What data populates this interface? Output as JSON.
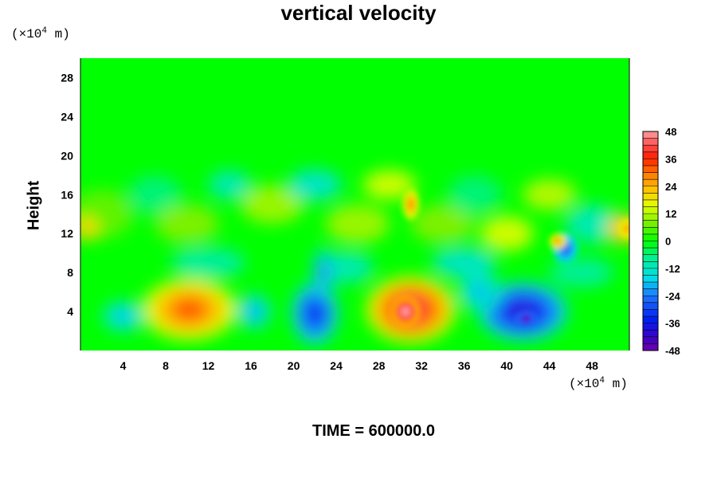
{
  "chart_data": {
    "type": "heatmap",
    "title": "vertical velocity",
    "ylabel": "Height",
    "xlabel": "",
    "x_unit": "(×10⁴ m)",
    "y_unit": "(×10⁴ m)",
    "footer": "TIME = 600000.0",
    "xlim": [
      0,
      51.5
    ],
    "ylim": [
      0,
      30
    ],
    "x_ticks": [
      4,
      8,
      12,
      16,
      20,
      24,
      28,
      32,
      36,
      40,
      44,
      48
    ],
    "y_ticks": [
      4,
      8,
      12,
      16,
      20,
      24,
      28
    ],
    "colorbar": {
      "range": [
        -48,
        48
      ],
      "ticks": [
        48,
        36,
        24,
        12,
        0,
        -12,
        -24,
        -36,
        -48
      ]
    },
    "features": [
      {
        "x": 10.0,
        "y": 4.0,
        "value": 36
      },
      {
        "x": 31.0,
        "y": 4.0,
        "value": 46
      },
      {
        "x": 22.0,
        "y": 3.0,
        "value": -38
      },
      {
        "x": 42.0,
        "y": 3.5,
        "value": -46
      },
      {
        "x": 4.0,
        "y": 3.5,
        "value": -20
      },
      {
        "x": 16.0,
        "y": 4.0,
        "value": -22
      },
      {
        "x": 31.0,
        "y": 15.0,
        "value": 28
      },
      {
        "x": 45.0,
        "y": 11.0,
        "value": -30
      }
    ]
  },
  "labels": {
    "unit_prefix": "(×10",
    "unit_exp": "4",
    "unit_suffix": " m)"
  }
}
